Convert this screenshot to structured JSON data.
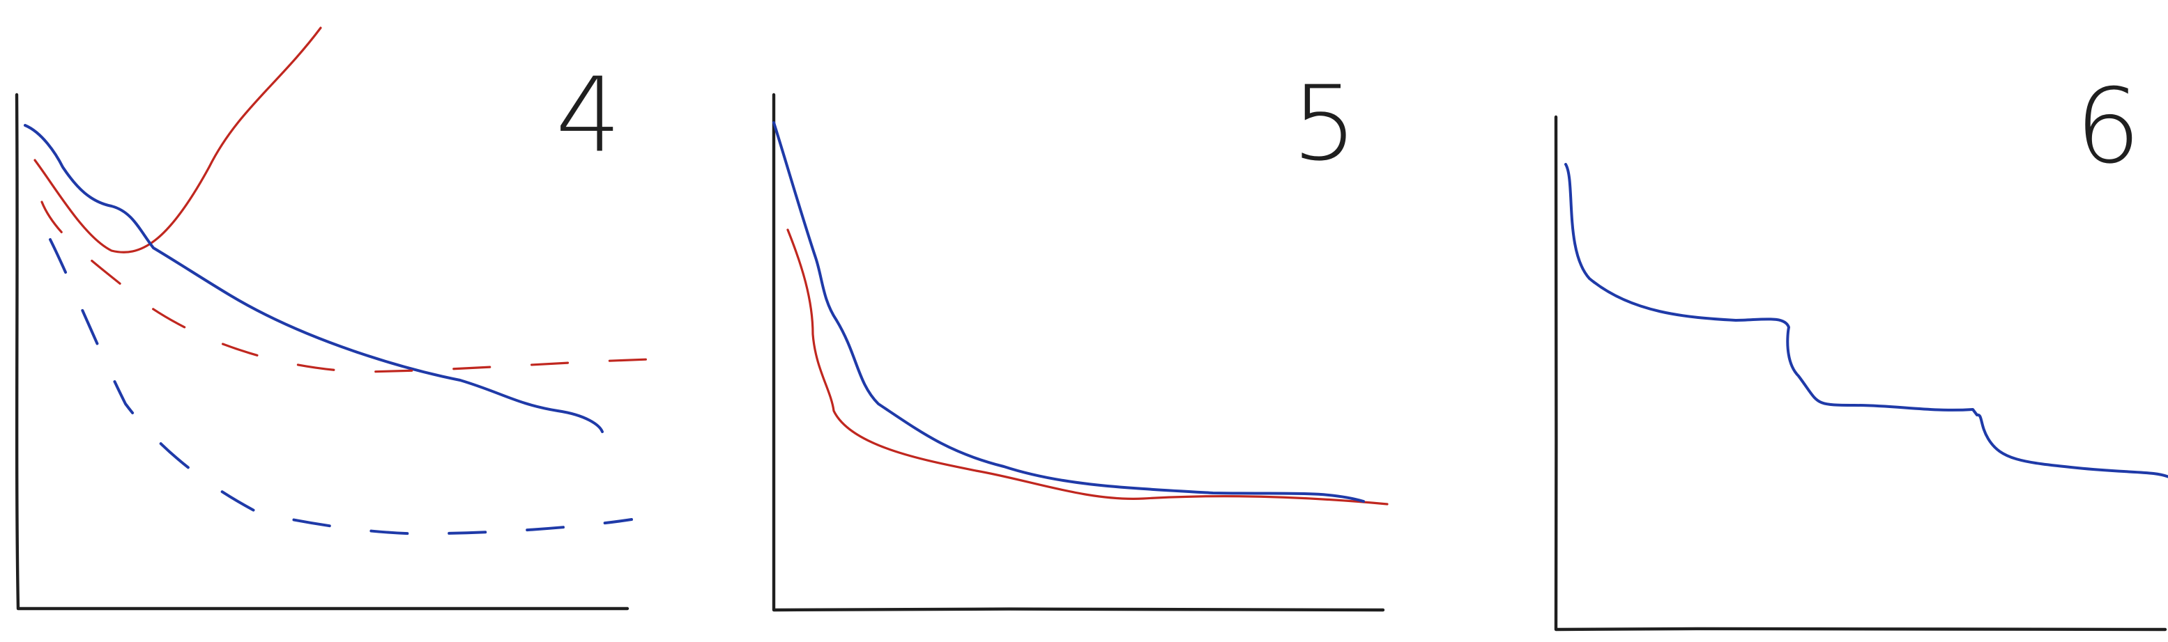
{
  "panels": [
    {
      "label": "4"
    },
    {
      "label": "5"
    },
    {
      "label": "6"
    }
  ]
}
